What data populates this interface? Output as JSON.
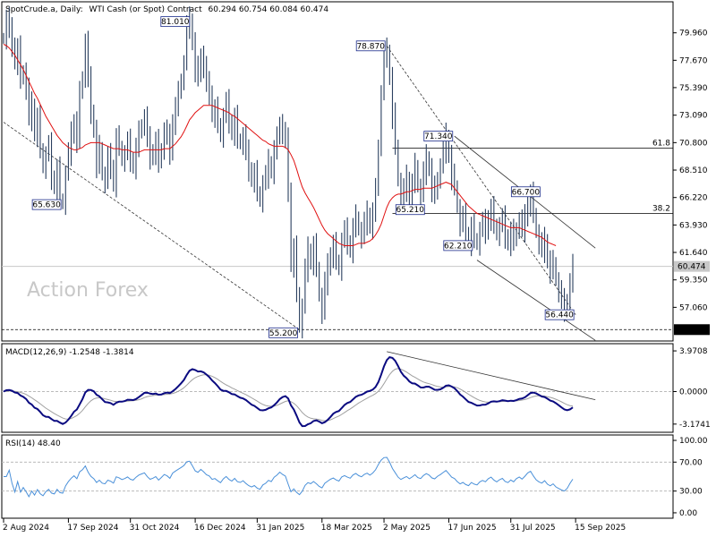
{
  "header": {
    "symbol": "SpotCrude.a, Daily:",
    "instrument": "WTI Cash (or Spot) Contract",
    "ohlc": "60.294 60.754 60.084 60.474"
  },
  "watermark": "Action Forex",
  "chart_data": [
    {
      "type": "line",
      "name": "price",
      "ylim": [
        54.4,
        82.4
      ],
      "y_ticks": [
        "79.960",
        "77.670",
        "75.390",
        "73.090",
        "70.800",
        "68.510",
        "66.220",
        "63.930",
        "61.640",
        "59.350",
        "57.060"
      ],
      "y_tick_values": [
        79.96,
        77.67,
        75.39,
        73.09,
        70.8,
        68.51,
        66.22,
        63.93,
        61.64,
        59.35,
        57.06
      ],
      "x_labels": [
        "2 Aug 2024",
        "17 Sep 2024",
        "31 Oct 2024",
        "16 Dec 2024",
        "31 Jan 2025",
        "18 Mar 2025",
        "2 May 2025",
        "17 Jun 2025",
        "31 Jul 2025",
        "15 Sep 2025"
      ],
      "close_series": [
        79.5,
        81.2,
        80.1,
        79.0,
        77.6,
        78.7,
        76.1,
        76.8,
        75.3,
        72.8,
        73.9,
        71.6,
        72.9,
        70.3,
        68.7,
        69.8,
        70.5,
        67.9,
        67.2,
        68.6,
        66.1,
        65.7,
        68.2,
        69.9,
        71.4,
        72.6,
        71.1,
        74.9,
        76.3,
        79.2,
        76.0,
        73.4,
        71.9,
        69.0,
        70.4,
        68.1,
        67.5,
        69.6,
        68.8,
        67.4,
        71.2,
        70.5,
        69.3,
        69.9,
        70.8,
        69.4,
        68.9,
        70.4,
        71.6,
        72.3,
        72.9,
        71.0,
        69.6,
        70.1,
        70.9,
        69.1,
        70.3,
        71.8,
        71.2,
        70.0,
        72.6,
        73.8,
        74.9,
        76.1,
        77.4,
        80.5,
        81.0,
        79.2,
        77.0,
        76.3,
        78.2,
        77.1,
        75.6,
        75.0,
        73.2,
        73.6,
        72.4,
        71.3,
        73.0,
        74.1,
        72.6,
        71.7,
        72.9,
        71.1,
        70.7,
        71.4,
        69.9,
        68.6,
        67.8,
        68.3,
        66.7,
        65.9,
        67.4,
        68.0,
        69.1,
        68.5,
        70.2,
        71.1,
        72.5,
        71.6,
        70.9,
        66.9,
        60.7,
        62.0,
        58.3,
        55.4,
        57.1,
        60.2,
        61.8,
        60.9,
        62.2,
        60.4,
        58.0,
        56.6,
        59.1,
        60.4,
        61.5,
        62.3,
        61.0,
        60.2,
        62.6,
        63.4,
        62.5,
        61.9,
        63.7,
        64.6,
        63.5,
        62.9,
        64.1,
        64.8,
        63.9,
        65.0,
        66.8,
        70.6,
        74.9,
        78.1,
        78.4,
        76.3,
        73.1,
        70.6,
        67.6,
        65.8,
        66.9,
        67.8,
        66.3,
        67.4,
        68.9,
        67.1,
        66.4,
        68.3,
        69.5,
        68.7,
        67.0,
        66.5,
        67.9,
        68.8,
        70.1,
        71.3,
        69.8,
        68.0,
        67.2,
        65.4,
        63.9,
        64.6,
        63.2,
        62.5,
        63.8,
        62.8,
        62.3,
        63.5,
        64.1,
        63.4,
        64.6,
        65.3,
        64.0,
        63.1,
        63.9,
        64.4,
        63.0,
        62.5,
        63.4,
        62.6,
        63.7,
        64.3,
        63.5,
        64.5,
        65.8,
        66.5,
        64.9,
        63.3,
        62.4,
        61.8,
        62.6,
        61.0,
        60.2,
        60.8,
        59.3,
        58.4,
        57.5,
        56.9,
        57.6,
        59.1,
        60.47
      ],
      "ma_series": [
        79.0,
        78.9,
        78.7,
        78.4,
        78.1,
        77.7,
        77.3,
        76.9,
        76.4,
        75.9,
        75.4,
        74.9,
        74.5,
        74.0,
        73.5,
        73.0,
        72.6,
        72.2,
        71.8,
        71.4,
        71.1,
        70.8,
        70.6,
        70.4,
        70.3,
        70.2,
        70.2,
        70.3,
        70.4,
        70.6,
        70.7,
        70.8,
        70.8,
        70.8,
        70.8,
        70.7,
        70.6,
        70.5,
        70.4,
        70.3,
        70.3,
        70.3,
        70.2,
        70.2,
        70.2,
        70.1,
        70.0,
        70.0,
        70.0,
        70.1,
        70.2,
        70.2,
        70.2,
        70.2,
        70.2,
        70.2,
        70.2,
        70.3,
        70.3,
        70.3,
        70.5,
        70.7,
        71.0,
        71.3,
        71.7,
        72.2,
        72.7,
        73.0,
        73.3,
        73.5,
        73.7,
        73.9,
        73.9,
        73.9,
        73.9,
        73.8,
        73.7,
        73.6,
        73.5,
        73.4,
        73.3,
        73.1,
        73.0,
        72.8,
        72.6,
        72.4,
        72.2,
        72.0,
        71.8,
        71.6,
        71.4,
        71.2,
        71.0,
        70.9,
        70.7,
        70.6,
        70.5,
        70.5,
        70.5,
        70.5,
        70.4,
        70.2,
        69.8,
        69.3,
        68.6,
        67.8,
        67.1,
        66.6,
        66.2,
        65.8,
        65.4,
        64.9,
        64.4,
        63.9,
        63.5,
        63.2,
        63.0,
        62.8,
        62.6,
        62.4,
        62.3,
        62.2,
        62.2,
        62.2,
        62.2,
        62.3,
        62.4,
        62.4,
        62.4,
        62.5,
        62.6,
        62.8,
        63.1,
        63.5,
        64.0,
        64.7,
        65.4,
        65.9,
        66.2,
        66.4,
        66.5,
        66.5,
        66.6,
        66.7,
        66.7,
        66.8,
        66.9,
        66.9,
        66.9,
        67.0,
        67.0,
        67.0,
        67.0,
        67.1,
        67.2,
        67.3,
        67.4,
        67.5,
        67.4,
        67.3,
        67.0,
        66.7,
        66.4,
        66.1,
        65.8,
        65.5,
        65.3,
        65.1,
        64.9,
        64.8,
        64.7,
        64.6,
        64.5,
        64.4,
        64.3,
        64.2,
        64.1,
        64.0,
        63.9,
        63.8,
        63.7,
        63.7,
        63.7,
        63.7,
        63.6,
        63.5,
        63.4,
        63.3,
        63.2,
        63.1,
        63.0,
        62.9,
        62.7,
        62.5,
        62.4,
        62.3,
        62.2
      ],
      "markers": [
        {
          "label": "81.010",
          "index": 66,
          "value": 81.01
        },
        {
          "label": "78.870",
          "index": 136,
          "value": 78.87
        },
        {
          "label": "71.340",
          "index": 160,
          "value": 71.34
        },
        {
          "label": "66.700",
          "index": 191,
          "value": 66.7
        },
        {
          "label": "65.630",
          "index": 21,
          "value": 65.63
        },
        {
          "label": "65.210",
          "index": 150,
          "value": 65.21
        },
        {
          "label": "62.210",
          "index": 167,
          "value": 62.21
        },
        {
          "label": "56.440",
          "index": 203,
          "value": 56.44
        },
        {
          "label": "55.200",
          "index": 105,
          "value": 55.2
        }
      ],
      "fib_levels": [
        {
          "label": "61.8",
          "value": 70.35
        },
        {
          "label": "38.2",
          "value": 64.9
        }
      ],
      "current_price_label": "60.474",
      "current_price": 60.474,
      "support_label": "55.200",
      "support": 55.2
    },
    {
      "type": "line",
      "name": "MACD(12,26,9)",
      "title": "MACD(12,26,9) -1.2548 -1.3814",
      "y_ticks": [
        "3.9708",
        "0.0000",
        "-3.1741"
      ],
      "y_tick_values": [
        3.9708,
        0.0,
        -3.1741
      ],
      "ylim": [
        -3.8,
        4.5
      ]
    },
    {
      "type": "line",
      "name": "RSI(14)",
      "title": "RSI(14) 48.40",
      "y_ticks": [
        "100.00",
        "70.00",
        "30.00",
        "0.00"
      ],
      "y_tick_values": [
        100,
        70,
        30,
        0
      ],
      "ylim": [
        -5,
        105
      ]
    }
  ],
  "colors": {
    "price": "#2a3f5f",
    "ma": "#e01010",
    "macd": "#0a0a80",
    "signal": "#a0a0a0",
    "rsi": "#4a90d9"
  }
}
